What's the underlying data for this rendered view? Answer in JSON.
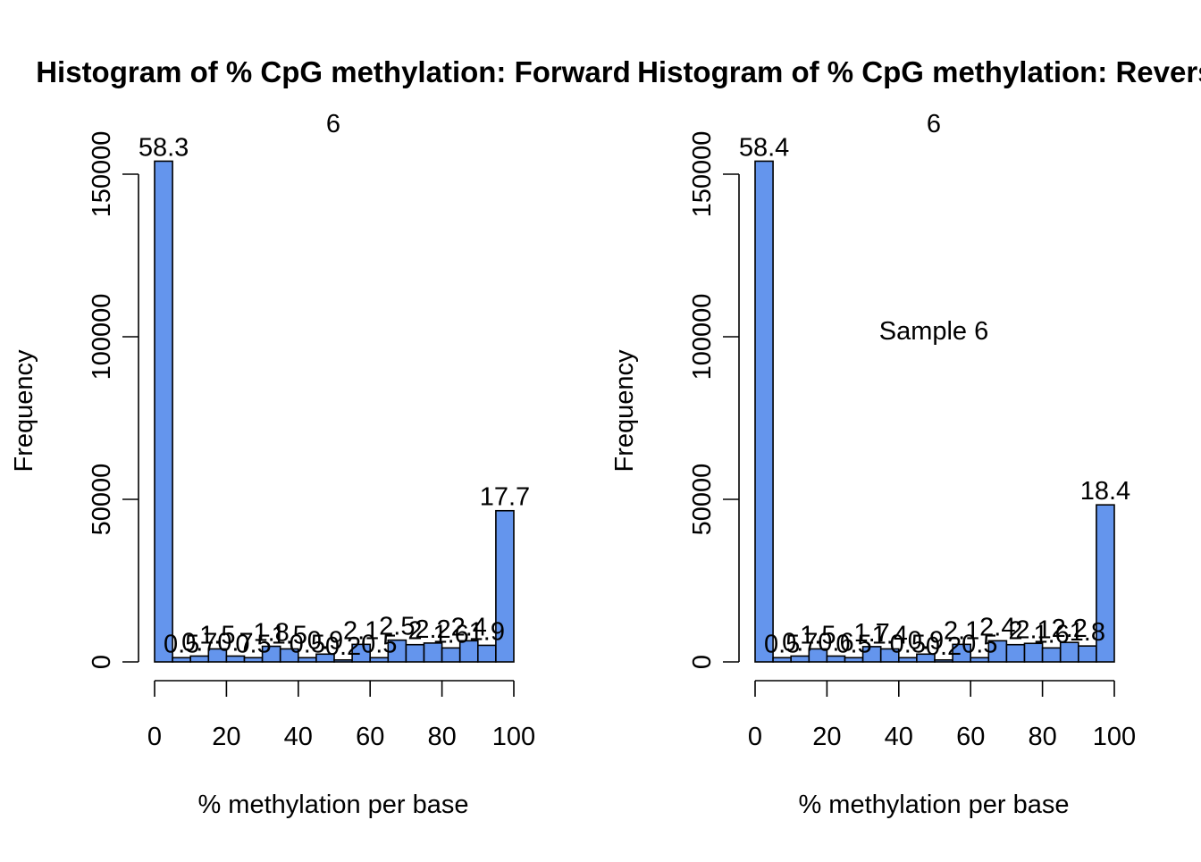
{
  "chart_data": [
    {
      "type": "bar",
      "title": "Histogram of % CpG methylation: Forward",
      "subtitle": "6",
      "annotation": "",
      "xlabel": "% methylation per base",
      "ylabel": "Frequency",
      "xlim": [
        0,
        100
      ],
      "ylim": [
        0,
        160000
      ],
      "xticks": [
        "0",
        "20",
        "40",
        "60",
        "80",
        "100"
      ],
      "yticks": [
        "0",
        "50000",
        "100000",
        "150000"
      ],
      "bin_edges": [
        0,
        5,
        10,
        15,
        20,
        25,
        30,
        35,
        40,
        45,
        50,
        55,
        60,
        65,
        70,
        75,
        80,
        85,
        90,
        95,
        100
      ],
      "values": [
        154000,
        1300,
        1800,
        4000,
        1800,
        1300,
        4800,
        4000,
        1300,
        2400,
        600,
        5400,
        1300,
        6700,
        5300,
        5800,
        4300,
        6500,
        5100,
        46500
      ],
      "bar_labels": [
        "58.3",
        "0.5",
        "0.7",
        "1.5",
        "0.7",
        "0.5",
        "1.8",
        "1.5",
        "0.5",
        "0.9",
        "0.2",
        "2.1",
        "0.5",
        "2.5",
        "2",
        "2.2",
        "1.6",
        "2.4",
        "1.9",
        "17.7"
      ],
      "bar_color": "#6495ED"
    },
    {
      "type": "bar",
      "title": "Histogram of % CpG methylation: Reverse",
      "subtitle": "6",
      "annotation": "Sample 6",
      "xlabel": "% methylation per base",
      "ylabel": "Frequency",
      "xlim": [
        0,
        100
      ],
      "ylim": [
        0,
        160000
      ],
      "xticks": [
        "0",
        "20",
        "40",
        "60",
        "80",
        "100"
      ],
      "yticks": [
        "0",
        "50000",
        "100000",
        "150000"
      ],
      "bin_edges": [
        0,
        5,
        10,
        15,
        20,
        25,
        30,
        35,
        40,
        45,
        50,
        55,
        60,
        65,
        70,
        75,
        80,
        85,
        90,
        95,
        100
      ],
      "values": [
        154000,
        1300,
        1800,
        4000,
        1800,
        1300,
        4700,
        4000,
        1300,
        2400,
        600,
        5400,
        1300,
        6500,
        5300,
        5700,
        4300,
        6000,
        4900,
        48300
      ],
      "bar_labels": [
        "58.4",
        "0.5",
        "0.7",
        "1.5",
        "0.6",
        "0.5",
        "1.7",
        "1.4",
        "0.5",
        "0.9",
        "0.2",
        "2.1",
        "0.5",
        "2.4",
        "2",
        "2.1",
        "1.6",
        "2.2",
        "1.8",
        "18.4"
      ],
      "bar_color": "#6495ED"
    }
  ]
}
